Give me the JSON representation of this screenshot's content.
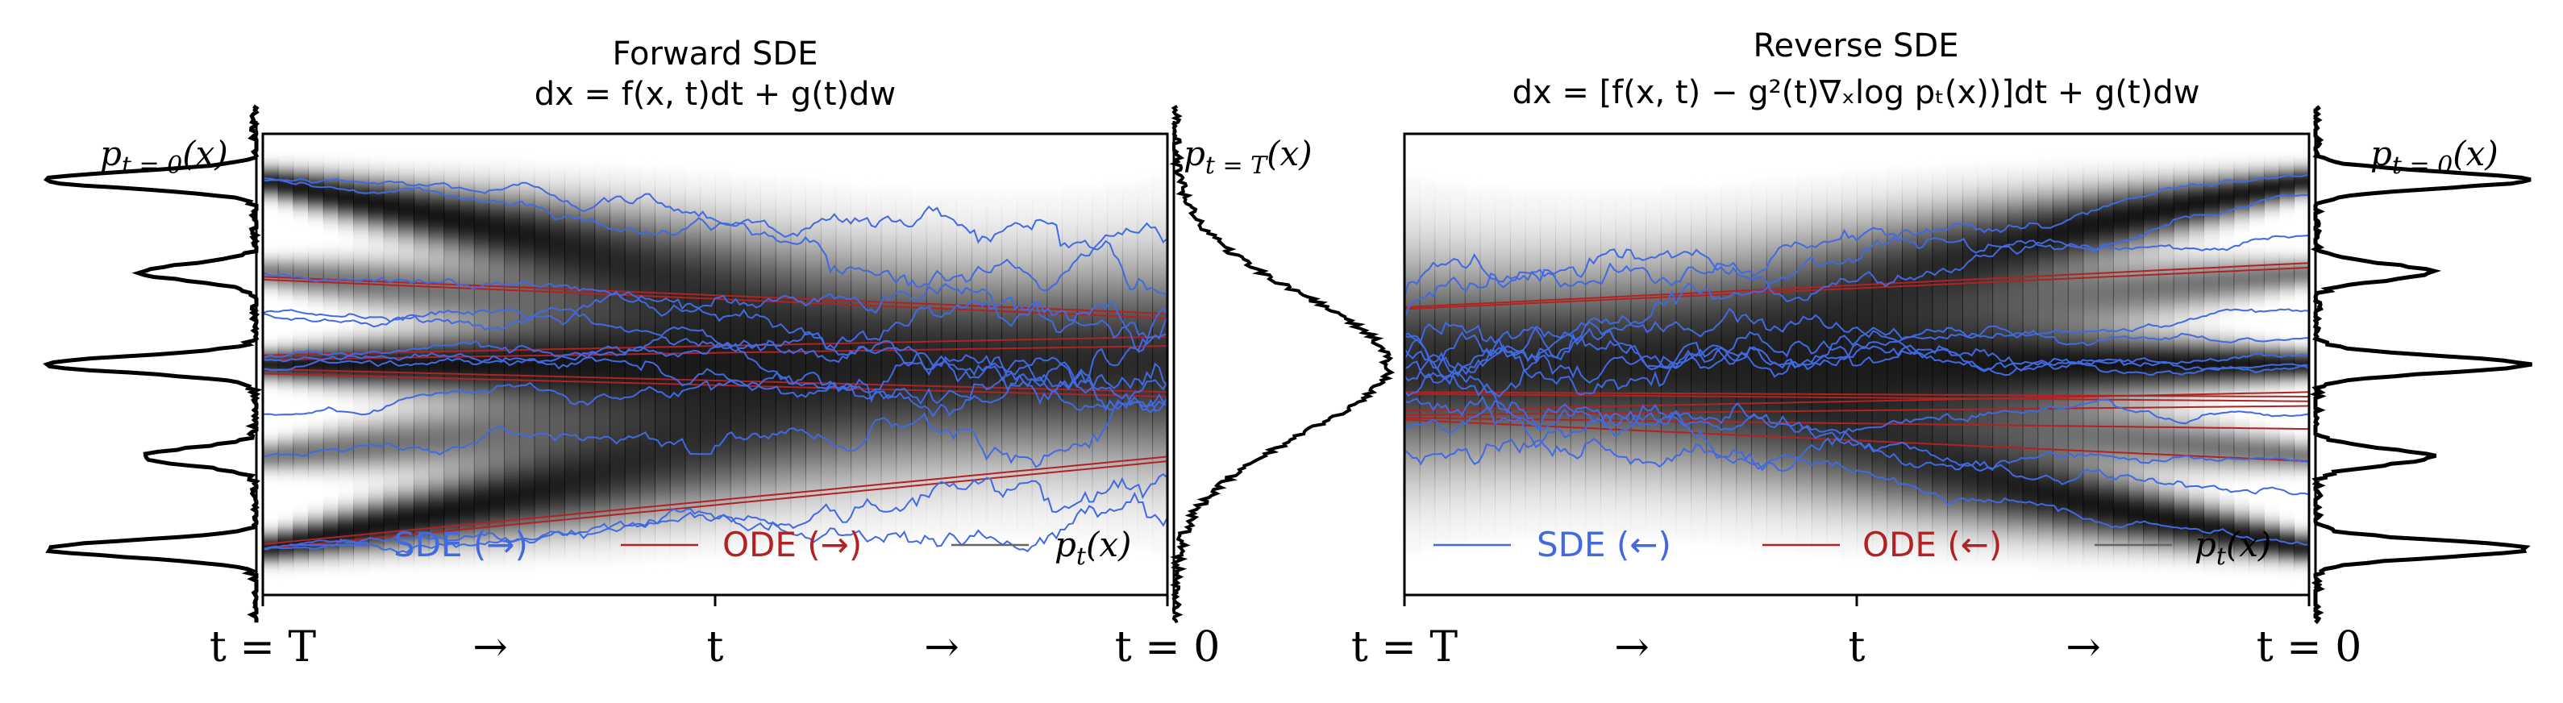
{
  "colors": {
    "sde": "#4169e1",
    "ode": "#b22222",
    "density": "#666666",
    "axes": "#000000"
  },
  "panels": [
    {
      "id": "forward",
      "title": "Forward SDE",
      "equation": "dx = f(x, t)dt + g(t)dw",
      "x_ticks": [
        "t = T",
        "→",
        "t",
        "→",
        "t = 0"
      ],
      "left_density_label": "p_{t=0}(x)",
      "right_density_label": "p_{t=T}(x)",
      "legend": {
        "sde": "SDE (→)",
        "ode": "ODE (→)",
        "density": "p_t(x)"
      }
    },
    {
      "id": "reverse",
      "title": "Reverse SDE",
      "equation": "dx = [f(x, t) − g²(t)∇ₓlog pₜ(x))]dt + g(t)dw",
      "x_ticks": [
        "t = T",
        "→",
        "t",
        "→",
        "t = 0"
      ],
      "right_density_label": "p_{t=0}(x)",
      "legend": {
        "sde": "SDE (←)",
        "ode": "ODE (←)",
        "density": "p_t(x)"
      }
    }
  ],
  "legend_text": {
    "forward_sde": "SDE (→)",
    "forward_ode": "ODE (→)",
    "reverse_sde": "SDE (←)",
    "reverse_ode": "ODE (←)"
  },
  "prior": {
    "data_modes": [
      -2,
      -1,
      0,
      1,
      2
    ],
    "data_weights": [
      1,
      0.55,
      1,
      0.55,
      1
    ],
    "data_sigma": 0.09,
    "noise_sigma": 0.75
  }
}
